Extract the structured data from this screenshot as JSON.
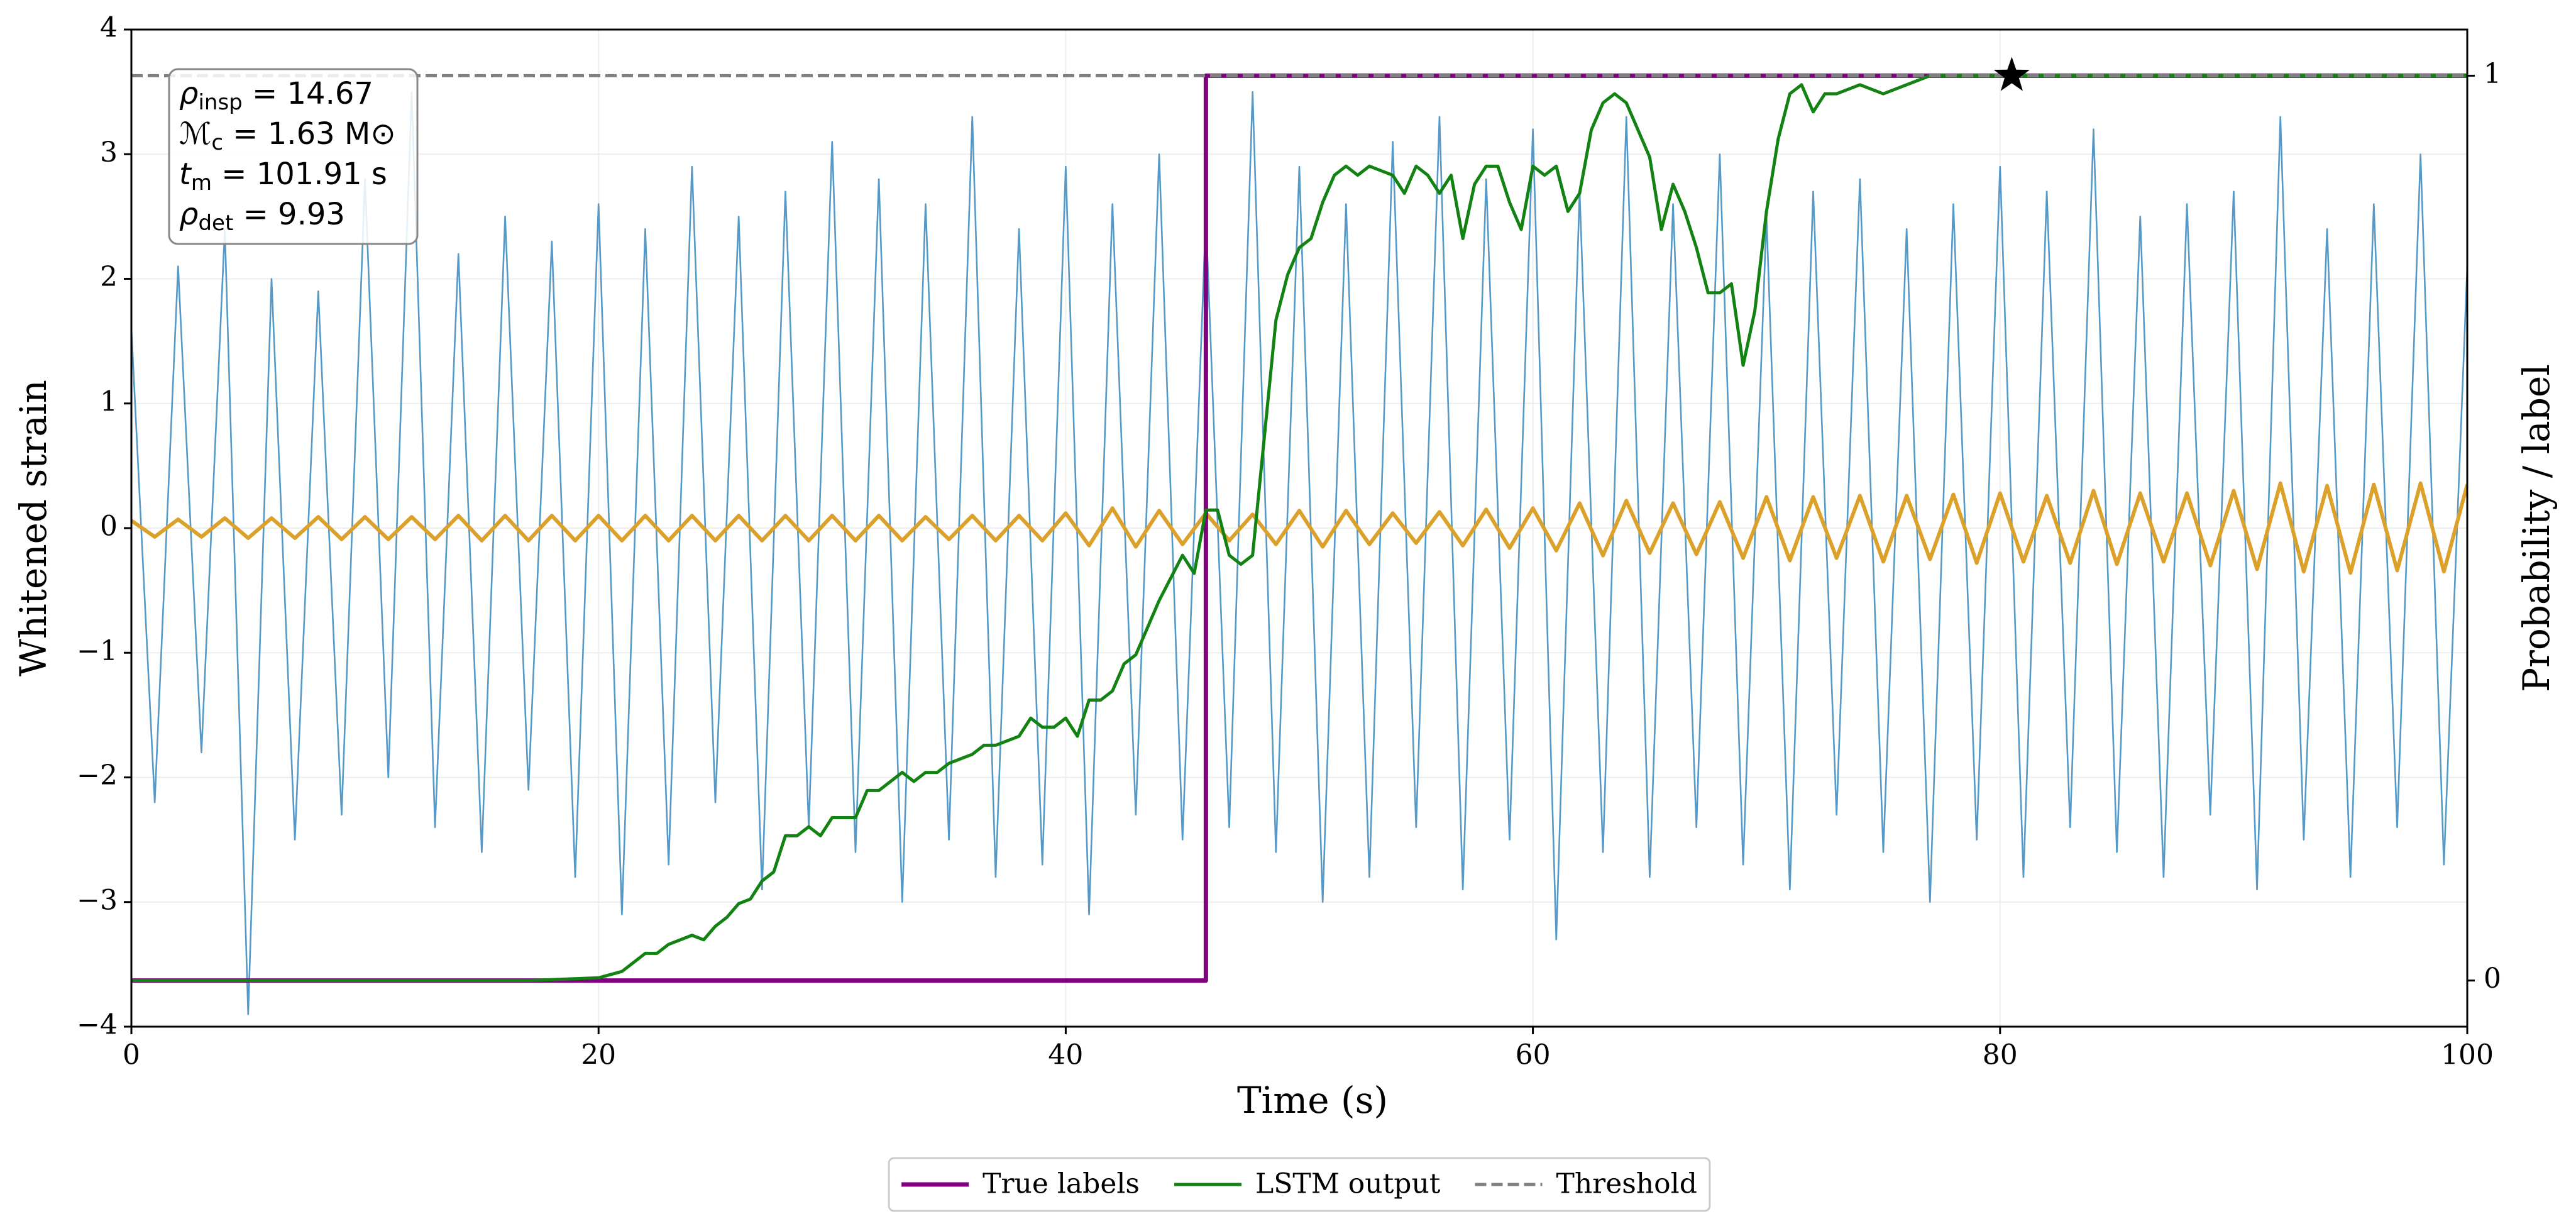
{
  "chart_data": {
    "type": "line",
    "xlabel": "Time (s)",
    "ylabel": "Whitened strain",
    "y2label": "Probability / label",
    "xlim": [
      0,
      100
    ],
    "xticks": [
      0,
      20,
      40,
      60,
      80,
      100
    ],
    "ylim": [
      -4,
      4
    ],
    "yticks": [
      {
        "value": -4,
        "label": "−4"
      },
      {
        "value": -3,
        "label": "−3"
      },
      {
        "value": -2,
        "label": "−2"
      },
      {
        "value": -1,
        "label": "−1"
      },
      0,
      1,
      2,
      3,
      4
    ],
    "y2lim": [
      -0.051,
      1.051
    ],
    "y2ticks": [
      0,
      1
    ],
    "grid": true,
    "legend": "below",
    "annotation": [
      {
        "symbol": "ρ",
        "sub": "insp",
        "rest": " = 14.67"
      },
      {
        "symbol": "ℳ",
        "sub": "c",
        "rest": " = 1.63 M⊙"
      },
      {
        "symbol": "t",
        "sub": "m",
        "rest": " = 101.91 s"
      },
      {
        "symbol": "ρ",
        "sub": "det",
        "rest": " = 9.93"
      }
    ],
    "series": [
      {
        "color": "#5599c8",
        "width": 2.6,
        "x": [
          0,
          1,
          2,
          3,
          4,
          5,
          6,
          7,
          8,
          9,
          10,
          11,
          12,
          13,
          14,
          15,
          16,
          17,
          18,
          19,
          20,
          21,
          22,
          23,
          24,
          25,
          26,
          27,
          28,
          29,
          30,
          31,
          32,
          33,
          34,
          35,
          36,
          37,
          38,
          39,
          40,
          41,
          42,
          43,
          44,
          45,
          46,
          47,
          48,
          49,
          50,
          51,
          52,
          53,
          54,
          55,
          56,
          57,
          58,
          59,
          60,
          61,
          62,
          63,
          64,
          65,
          66,
          67,
          68,
          69,
          70,
          71,
          72,
          73,
          74,
          75,
          76,
          77,
          78,
          79,
          80,
          81,
          82,
          83,
          84,
          85,
          86,
          87,
          88,
          89,
          90,
          91,
          92,
          93,
          94,
          95,
          96,
          97,
          98,
          99,
          100
        ],
        "values": [
          1.6,
          -2.2,
          2.1,
          -1.8,
          2.4,
          -3.9,
          2.0,
          -2.5,
          1.9,
          -2.3,
          2.8,
          -2.0,
          3.5,
          -2.4,
          2.2,
          -2.6,
          2.5,
          -2.1,
          2.3,
          -2.8,
          2.6,
          -3.1,
          2.4,
          -2.7,
          2.9,
          -2.2,
          2.5,
          -2.9,
          2.7,
          -2.4,
          3.1,
          -2.6,
          2.8,
          -3.0,
          2.6,
          -2.5,
          3.3,
          -2.8,
          2.4,
          -2.7,
          2.9,
          -3.1,
          2.6,
          -2.3,
          3.0,
          -2.5,
          2.5,
          -2.4,
          3.5,
          -2.6,
          2.9,
          -3.0,
          2.6,
          -2.8,
          3.1,
          -2.4,
          3.3,
          -2.9,
          2.8,
          -2.5,
          3.2,
          -3.3,
          2.7,
          -2.6,
          3.3,
          -2.8,
          2.6,
          -2.4,
          3.0,
          -2.7,
          2.5,
          -2.9,
          2.7,
          -2.3,
          2.8,
          -2.6,
          2.4,
          -3.0,
          2.6,
          -2.5,
          2.9,
          -2.8,
          2.7,
          -2.4,
          3.2,
          -2.6,
          2.5,
          -2.8,
          2.6,
          -2.3,
          2.7,
          -2.9,
          3.3,
          -2.5,
          2.4,
          -2.8,
          2.6,
          -2.4,
          3.0,
          -2.7,
          2.1
        ]
      },
      {
        "color": "#dba12b",
        "width": 6,
        "x": [
          0,
          1,
          2,
          3,
          4,
          5,
          6,
          7,
          8,
          9,
          10,
          11,
          12,
          13,
          14,
          15,
          16,
          17,
          18,
          19,
          20,
          21,
          22,
          23,
          24,
          25,
          26,
          27,
          28,
          29,
          30,
          31,
          32,
          33,
          34,
          35,
          36,
          37,
          38,
          39,
          40,
          41,
          42,
          43,
          44,
          45,
          46,
          47,
          48,
          49,
          50,
          51,
          52,
          53,
          54,
          55,
          56,
          57,
          58,
          59,
          60,
          61,
          62,
          63,
          64,
          65,
          66,
          67,
          68,
          69,
          70,
          71,
          72,
          73,
          74,
          75,
          76,
          77,
          78,
          79,
          80,
          81,
          82,
          83,
          84,
          85,
          86,
          87,
          88,
          89,
          90,
          91,
          92,
          93,
          94,
          95,
          96,
          97,
          98,
          99,
          100
        ],
        "values": [
          0.06,
          -0.07,
          0.07,
          -0.07,
          0.08,
          -0.08,
          0.08,
          -0.08,
          0.09,
          -0.09,
          0.09,
          -0.09,
          0.09,
          -0.09,
          0.1,
          -0.1,
          0.1,
          -0.1,
          0.1,
          -0.1,
          0.1,
          -0.1,
          0.1,
          -0.1,
          0.1,
          -0.1,
          0.1,
          -0.1,
          0.1,
          -0.1,
          0.1,
          -0.1,
          0.1,
          -0.1,
          0.09,
          -0.09,
          0.1,
          -0.1,
          0.1,
          -0.1,
          0.12,
          -0.14,
          0.16,
          -0.15,
          0.14,
          -0.13,
          0.12,
          -0.1,
          0.11,
          -0.13,
          0.14,
          -0.15,
          0.14,
          -0.13,
          0.12,
          -0.12,
          0.13,
          -0.14,
          0.15,
          -0.16,
          0.16,
          -0.18,
          0.2,
          -0.22,
          0.22,
          -0.2,
          0.2,
          -0.21,
          0.21,
          -0.24,
          0.25,
          -0.26,
          0.25,
          -0.24,
          0.26,
          -0.27,
          0.26,
          -0.25,
          0.27,
          -0.28,
          0.28,
          -0.27,
          0.26,
          -0.28,
          0.3,
          -0.29,
          0.28,
          -0.27,
          0.28,
          -0.3,
          0.3,
          -0.33,
          0.36,
          -0.35,
          0.34,
          -0.36,
          0.35,
          -0.34,
          0.36,
          -0.35,
          0.35
        ]
      },
      {
        "name": "True labels",
        "color": "#800080",
        "width": 7,
        "axis": "y2",
        "x": [
          0,
          46,
          46,
          100
        ],
        "values": [
          0,
          0,
          1,
          1
        ]
      },
      {
        "name": "LSTM output",
        "color": "#128212",
        "width": 5,
        "axis": "y2",
        "x": [
          0,
          17,
          20,
          21,
          22,
          22.5,
          23,
          24,
          24.5,
          25,
          25.5,
          26,
          26.5,
          27,
          27.5,
          28,
          28.5,
          29,
          29.5,
          30,
          30.5,
          31,
          31.5,
          32,
          32.5,
          33,
          33.5,
          34,
          34.5,
          35,
          36,
          36.5,
          37,
          38,
          38.5,
          39,
          39.5,
          40,
          40.5,
          41,
          41.5,
          42,
          42.5,
          43,
          44,
          45,
          45.5,
          46,
          46.5,
          47,
          47.5,
          48,
          48.5,
          49,
          49.5,
          50,
          50.5,
          51,
          51.5,
          52,
          52.5,
          53,
          54,
          54.5,
          55,
          55.5,
          56,
          56.5,
          57,
          57.5,
          58,
          58.5,
          59,
          59.5,
          60,
          60.5,
          61,
          61.5,
          62,
          62.5,
          63,
          63.5,
          64,
          64.5,
          65,
          65.5,
          66,
          66.5,
          67,
          67.5,
          68,
          68.5,
          69,
          69.5,
          70,
          70.5,
          71,
          71.5,
          72,
          72.5,
          73,
          74,
          75,
          76,
          77,
          100
        ],
        "values": [
          0,
          0,
          0.003,
          0.01,
          0.03,
          0.03,
          0.04,
          0.05,
          0.045,
          0.06,
          0.07,
          0.085,
          0.09,
          0.11,
          0.12,
          0.16,
          0.16,
          0.17,
          0.16,
          0.18,
          0.18,
          0.18,
          0.21,
          0.21,
          0.22,
          0.23,
          0.22,
          0.23,
          0.23,
          0.24,
          0.25,
          0.26,
          0.26,
          0.27,
          0.29,
          0.28,
          0.28,
          0.29,
          0.27,
          0.31,
          0.31,
          0.32,
          0.35,
          0.36,
          0.42,
          0.47,
          0.45,
          0.52,
          0.52,
          0.47,
          0.46,
          0.47,
          0.6,
          0.73,
          0.78,
          0.81,
          0.82,
          0.86,
          0.89,
          0.9,
          0.89,
          0.9,
          0.89,
          0.87,
          0.9,
          0.89,
          0.87,
          0.89,
          0.82,
          0.88,
          0.9,
          0.9,
          0.86,
          0.83,
          0.9,
          0.89,
          0.9,
          0.85,
          0.87,
          0.94,
          0.97,
          0.98,
          0.97,
          0.94,
          0.91,
          0.83,
          0.88,
          0.85,
          0.81,
          0.76,
          0.76,
          0.77,
          0.68,
          0.74,
          0.85,
          0.93,
          0.98,
          0.99,
          0.96,
          0.98,
          0.98,
          0.99,
          0.98,
          0.99,
          1.0,
          1.0
        ]
      },
      {
        "name": "Threshold",
        "color": "#808080",
        "width": 5,
        "axis": "y2",
        "dash": true,
        "x": [
          0,
          100
        ],
        "values": [
          1,
          1
        ]
      }
    ],
    "marker": {
      "x": 80.5,
      "y": 1,
      "axis": "y2",
      "symbol": "star",
      "color": "#000000"
    }
  }
}
